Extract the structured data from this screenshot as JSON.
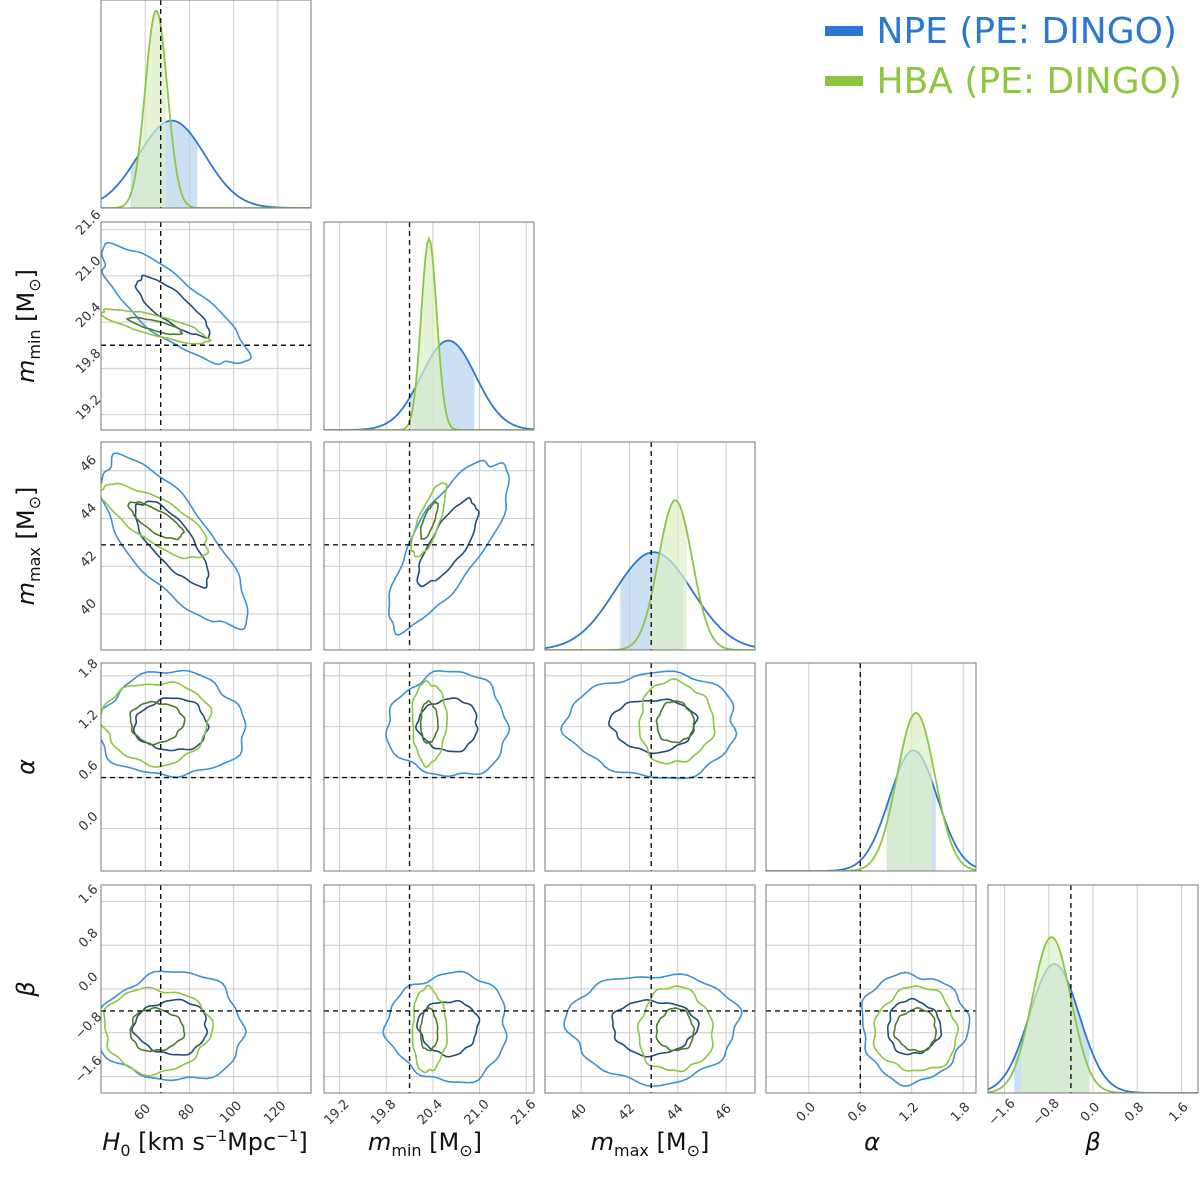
{
  "chart_data": {
    "type": "corner",
    "title": "",
    "parameters": [
      {
        "key": "H0",
        "label_main": "H",
        "label_sub": "0",
        "label_unit": " [km s",
        "label_unit_sup": "−1",
        "label_unit2": "Mpc",
        "label_unit2_sup": "−1",
        "label_unit_end": "]",
        "range": [
          40,
          135
        ],
        "ticks": [
          60,
          80,
          100,
          120
        ],
        "truth": 67
      },
      {
        "key": "m_min",
        "label_main": "m",
        "label_sub": "min",
        "label_unit": " [M",
        "label_unit_sub": "⊙",
        "label_unit_end": "]",
        "range": [
          19.0,
          21.7
        ],
        "ticks": [
          19.2,
          19.8,
          20.4,
          21.0,
          21.6
        ],
        "truth": 20.1
      },
      {
        "key": "m_max",
        "label_main": "m",
        "label_sub": "max",
        "label_unit": " [M",
        "label_unit_sub": "⊙",
        "label_unit_end": "]",
        "range": [
          38.5,
          47.2
        ],
        "ticks": [
          40,
          42,
          44,
          46
        ],
        "truth": 42.9
      },
      {
        "key": "alpha",
        "label_main": "α",
        "range": [
          -0.5,
          1.95
        ],
        "ticks": [
          0.0,
          0.6,
          1.2,
          1.8
        ],
        "truth": 0.6
      },
      {
        "key": "beta",
        "label_main": "β",
        "range": [
          -1.9,
          1.9
        ],
        "ticks": [
          -1.6,
          -0.8,
          0.0,
          0.8,
          1.6
        ],
        "truth": -0.4
      }
    ],
    "tick_labels": {
      "H0": [
        "60",
        "80",
        "100",
        "120"
      ],
      "m_min": [
        "19.2",
        "19.8",
        "20.4",
        "21.0",
        "21.6"
      ],
      "m_max": [
        "40",
        "42",
        "44",
        "46"
      ],
      "alpha": [
        "0.0",
        "0.6",
        "1.2",
        "1.8"
      ],
      "beta": [
        "−1.6",
        "−0.8",
        "0.0",
        "0.8",
        "1.6"
      ]
    },
    "series": [
      {
        "name": "NPE (PE: DINGO)",
        "color": "#2979d4",
        "line_color": "#3a93d6",
        "inner_color": "#1f4e7a",
        "fill": "#b7d3f0",
        "marginals": {
          "H0": {
            "mode": 72,
            "sd": 15,
            "ci": [
              53,
              84
            ]
          },
          "m_min": {
            "mode": 20.6,
            "sd": 0.35,
            "ci": [
              20.1,
              20.95
            ]
          },
          "m_max": {
            "mode": 43.0,
            "sd": 1.6,
            "ci": [
              41.6,
              44.3
            ]
          },
          "alpha": {
            "mode": 1.22,
            "sd": 0.28,
            "ci": [
              0.9,
              1.5
            ]
          },
          "beta": {
            "mode": -0.7,
            "sd": 0.45,
            "ci": [
              -1.45,
              -0.05
            ]
          }
        }
      },
      {
        "name": "HBA (PE: DINGO)",
        "color": "#8dc63f",
        "line_color": "#8dc63f",
        "inner_color": "#4f7a28",
        "fill": "#dcefc6",
        "marginals": {
          "H0": {
            "mode": 65,
            "sd": 5,
            "ci": [
              54,
              70
            ]
          },
          "m_min": {
            "mode": 20.35,
            "sd": 0.1,
            "ci": [
              20.1,
              21.0
            ]
          },
          "m_max": {
            "mode": 43.9,
            "sd": 0.7,
            "ci": [
              42.8,
              44.4
            ]
          },
          "alpha": {
            "mode": 1.25,
            "sd": 0.22,
            "ci": [
              0.9,
              1.45
            ]
          },
          "beta": {
            "mode": -0.75,
            "sd": 0.35,
            "ci": [
              -1.3,
              -0.05
            ]
          }
        }
      }
    ],
    "correlations": {
      "m_min|H0": -0.8,
      "m_max|H0": -0.75,
      "m_max|m_min": 0.75,
      "alpha|H0": 0.0,
      "alpha|m_min": 0.0,
      "alpha|m_max": 0.0,
      "beta|H0": 0.0,
      "beta|m_min": 0.0,
      "beta|m_max": 0.0,
      "beta|alpha": 0.0
    },
    "grid": true,
    "legend_position": "top-right"
  }
}
